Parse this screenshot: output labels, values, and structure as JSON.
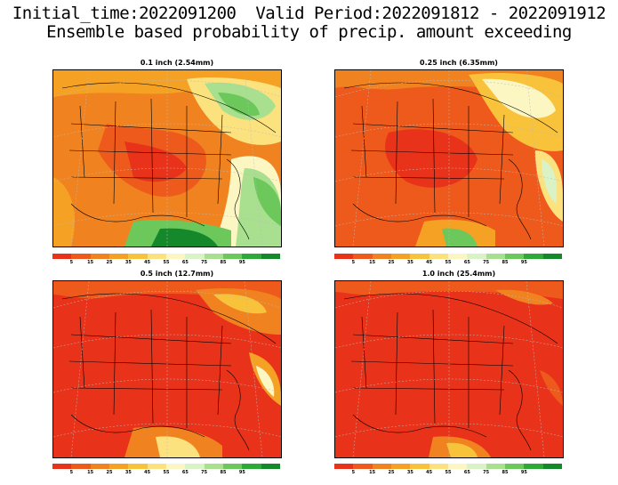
{
  "header": {
    "line1": "Initial_time:2022091200  Valid Period:2022091812 - 2022091912",
    "line2": "Ensemble based probability of precip. amount exceeding"
  },
  "panels": [
    {
      "title": "0.1 inch (2.54mm)"
    },
    {
      "title": "0.25 inch (6.35mm)"
    },
    {
      "title": "0.5 inch (12.7mm)"
    },
    {
      "title": "1.0 inch (25.4mm)"
    }
  ],
  "colorbar": {
    "colors": [
      "#e8331a",
      "#ee5a1c",
      "#f08220",
      "#f4a124",
      "#f8c23a",
      "#fbe27e",
      "#fcf6c2",
      "#d9f2c6",
      "#a9e08f",
      "#6cc85a",
      "#2fa83a",
      "#16882c"
    ],
    "labels": [
      "5",
      "15",
      "25",
      "35",
      "45",
      "55",
      "65",
      "75",
      "85",
      "95"
    ]
  }
}
